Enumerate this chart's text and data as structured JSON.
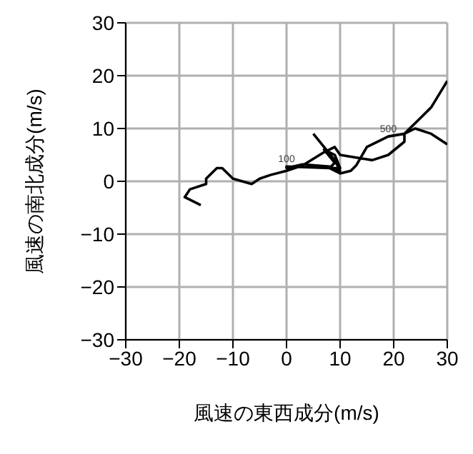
{
  "chart_data": {
    "type": "line",
    "xlabel": "風速の東西成分(m/s)",
    "ylabel": "風速の南北成分(m/s)",
    "x": [
      -16,
      -19,
      -18,
      -15,
      -15,
      -13,
      -12,
      -10,
      -6.5,
      -5,
      -3,
      0,
      3,
      7,
      9,
      10,
      13,
      16,
      19,
      22,
      22,
      25,
      27,
      30,
      null,
      30,
      27,
      24,
      22,
      19,
      15,
      13,
      12,
      10,
      8,
      9,
      7,
      9,
      10,
      8,
      0,
      0,
      3,
      8,
      10,
      9,
      5
    ],
    "series": [
      {
        "color": "#000000",
        "values": [
          -4.5,
          -3,
          -1.5,
          -0.5,
          0.5,
          2.5,
          2.5,
          0.5,
          -0.5,
          0.5,
          1.2,
          2,
          3,
          5.5,
          6.5,
          5,
          4.5,
          4,
          5,
          7.5,
          9,
          12,
          14,
          19,
          null,
          7,
          9,
          10,
          9,
          8.5,
          6.5,
          3,
          2,
          1.5,
          2.5,
          3.5,
          6,
          5,
          2.5,
          2.5,
          2.8,
          2.5,
          3.2,
          2.8,
          2,
          4,
          9
        ]
      }
    ],
    "xlim": [
      -30,
      30
    ],
    "ylim": [
      -30,
      30
    ],
    "xticks": [
      -30,
      -20,
      -10,
      0,
      10,
      20,
      30
    ],
    "yticks": [
      -30,
      -20,
      -10,
      0,
      10,
      20,
      30
    ],
    "grid": true,
    "marker": "none",
    "line_style": "solid",
    "annotations": [
      {
        "text": "100",
        "x": 0,
        "y": 2.8
      },
      {
        "text": "500",
        "x": 19,
        "y": 8.5
      }
    ]
  }
}
